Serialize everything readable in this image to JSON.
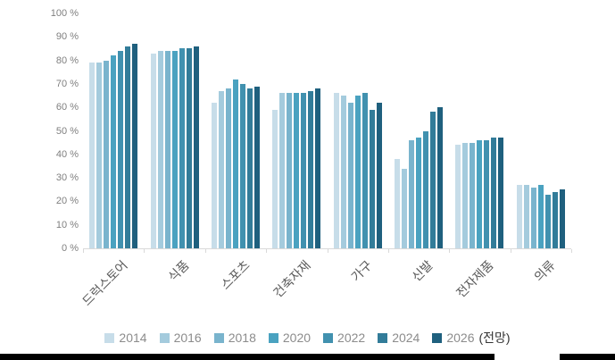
{
  "chart_data": {
    "type": "bar",
    "title": "",
    "xlabel": "",
    "ylabel": "",
    "ylim": [
      0,
      100
    ],
    "grid": false,
    "legend_position": "bottom",
    "y_ticks": [
      "100 %",
      "90 %",
      "80 %",
      "70 %",
      "60 %",
      "50 %",
      "40 %",
      "30 %",
      "20 %",
      "10 %",
      "0 %"
    ],
    "y_tick_values": [
      100,
      90,
      80,
      70,
      60,
      50,
      40,
      30,
      20,
      10,
      0
    ],
    "categories": [
      "드럭스토어",
      "식품",
      "스포츠",
      "건축자재",
      "가구",
      "신발",
      "전자제품",
      "의류"
    ],
    "series": [
      {
        "name": "2014",
        "color": "#c7dde9",
        "values": [
          79,
          83,
          62,
          59,
          66,
          38,
          44,
          27
        ]
      },
      {
        "name": "2016",
        "color": "#a4cbdd",
        "values": [
          79,
          84,
          67,
          66,
          65,
          34,
          45,
          27
        ]
      },
      {
        "name": "2018",
        "color": "#79b4cd",
        "values": [
          80,
          84,
          68,
          66,
          62,
          46,
          45,
          26
        ]
      },
      {
        "name": "2020",
        "color": "#4aa2c0",
        "values": [
          82,
          84,
          72,
          66,
          65,
          47,
          46,
          27
        ]
      },
      {
        "name": "2022",
        "color": "#4191af",
        "values": [
          84,
          85,
          70,
          66,
          66,
          50,
          46,
          23
        ]
      },
      {
        "name": "2024",
        "color": "#327c99",
        "values": [
          86,
          85,
          68,
          67,
          59,
          58,
          47,
          24
        ]
      },
      {
        "name": "2026",
        "color": "#1f607e",
        "values": [
          87,
          86,
          69,
          68,
          62,
          60,
          47,
          25
        ],
        "suffix": "(전망)"
      }
    ]
  }
}
